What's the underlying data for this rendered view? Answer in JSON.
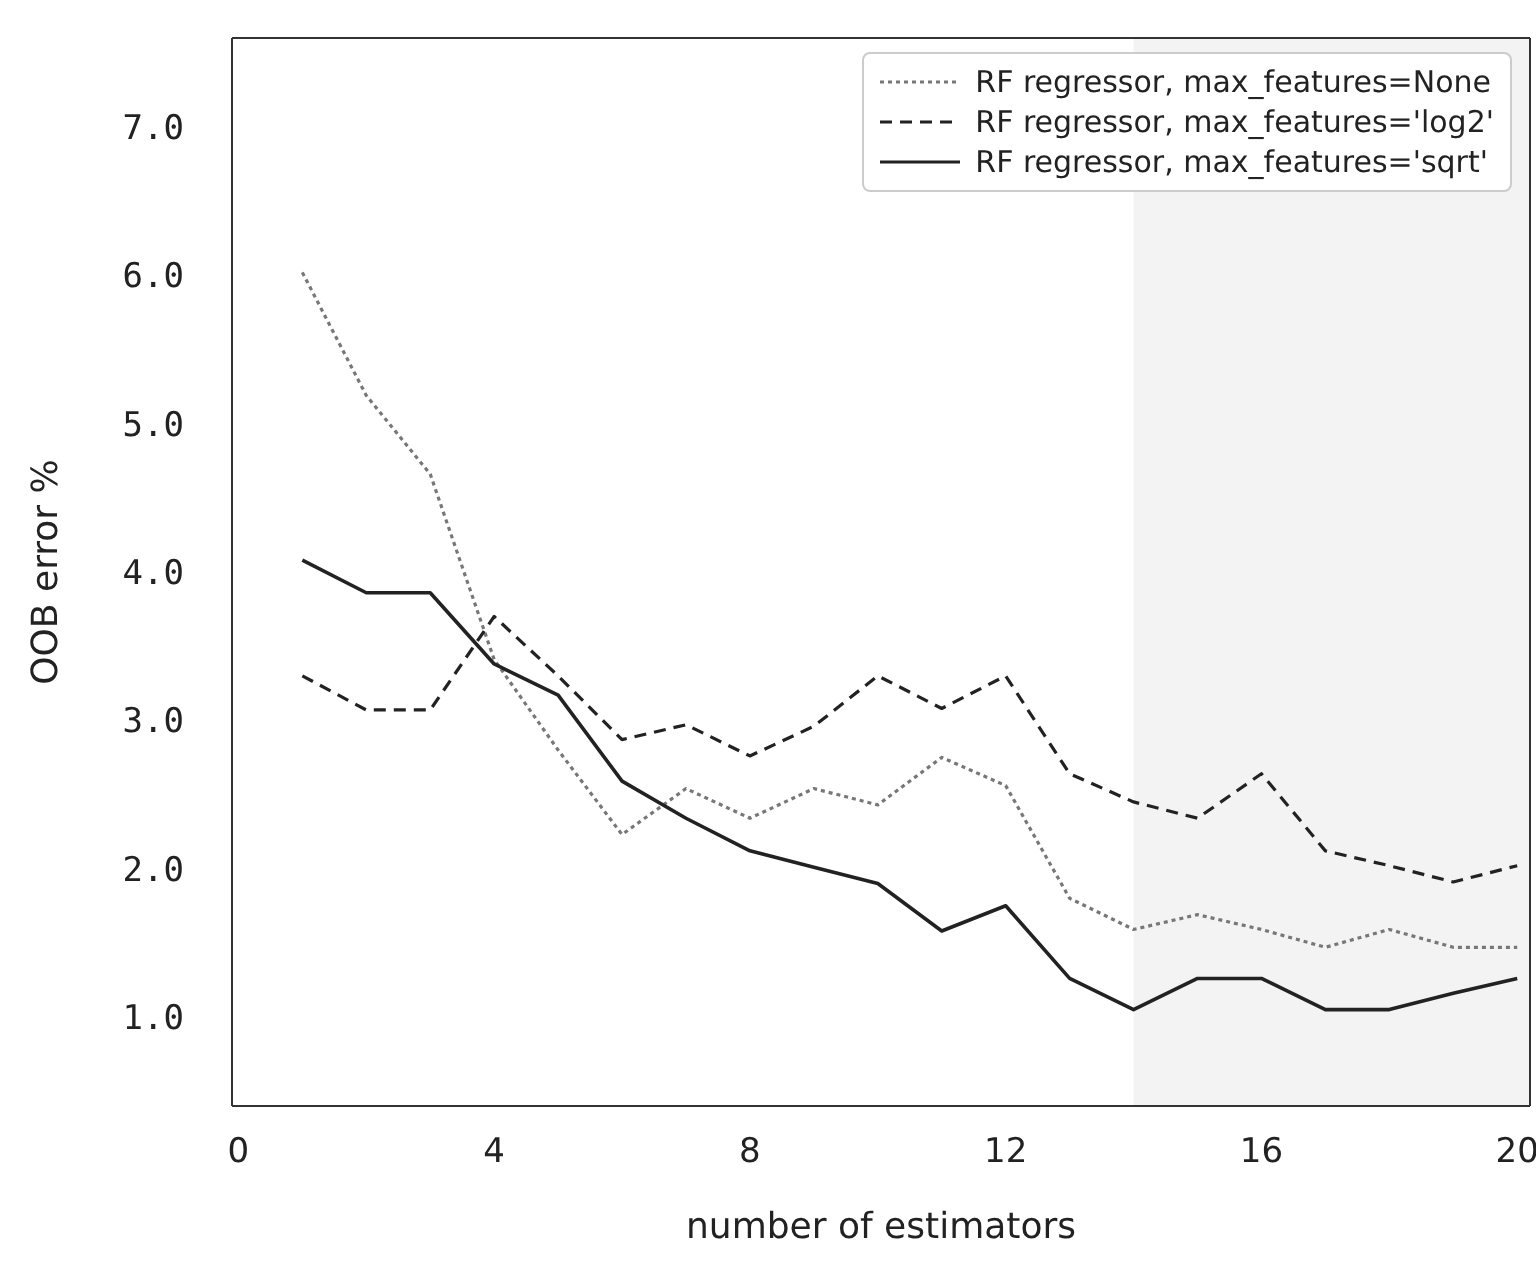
{
  "chart_data": {
    "type": "line",
    "xlabel": "number of estimators",
    "ylabel": "OOB error %",
    "x": [
      1,
      2,
      3,
      4,
      5,
      6,
      7,
      8,
      9,
      10,
      11,
      12,
      13,
      14,
      15,
      16,
      17,
      18,
      19,
      20
    ],
    "series": [
      {
        "name": "RF regressor, max_features=None",
        "color": "#777777",
        "line_style": "dotted",
        "values": [
          6.02,
          5.19,
          4.66,
          3.41,
          2.8,
          2.23,
          2.54,
          2.34,
          2.54,
          2.43,
          2.75,
          2.56,
          1.8,
          1.59,
          1.69,
          1.59,
          1.47,
          1.59,
          1.47,
          1.47
        ]
      },
      {
        "name": "RF regressor, max_features='log2'",
        "color": "#222222",
        "line_style": "dashed",
        "values": [
          3.3,
          3.07,
          3.07,
          3.7,
          3.3,
          2.87,
          2.97,
          2.76,
          2.96,
          3.3,
          3.08,
          3.3,
          2.64,
          2.45,
          2.34,
          2.64,
          2.12,
          2.02,
          1.91,
          2.02
        ]
      },
      {
        "name": "RF regressor, max_features='sqrt'",
        "color": "#222222",
        "line_style": "solid",
        "values": [
          4.08,
          3.86,
          3.86,
          3.38,
          3.17,
          2.59,
          2.34,
          2.12,
          2.01,
          1.9,
          1.58,
          1.75,
          1.26,
          1.05,
          1.26,
          1.26,
          1.05,
          1.05,
          1.16,
          1.26
        ]
      }
    ],
    "xlim": [
      -0.1,
      20.2
    ],
    "xticks": [
      0,
      4,
      8,
      12,
      16,
      20
    ],
    "ylim": [
      0.4,
      7.6
    ],
    "yticks": [
      {
        "value": 1,
        "label": "1.0"
      },
      {
        "value": 2,
        "label": "2.0"
      },
      {
        "value": 3,
        "label": "3.0"
      },
      {
        "value": 4,
        "label": "4.0"
      },
      {
        "value": 5,
        "label": "5.0"
      },
      {
        "value": 6,
        "label": "6.0"
      },
      {
        "value": 7,
        "label": "7.0"
      }
    ],
    "bands": [
      {
        "axis": "x",
        "from": 14,
        "to": 20.2,
        "color": "#f3f3f3"
      }
    ],
    "grid": false,
    "legend": "top right",
    "marker": "none"
  }
}
